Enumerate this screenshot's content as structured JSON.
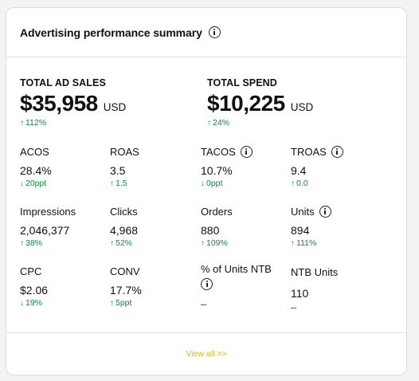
{
  "header": {
    "title": "Advertising performance summary"
  },
  "summary": {
    "sales": {
      "label": "TOTAL AD SALES",
      "value": "$35,958",
      "unit": "USD",
      "delta_arrow": "↑",
      "delta": "112%"
    },
    "spend": {
      "label": "TOTAL SPEND",
      "value": "$10,225",
      "unit": "USD",
      "delta_arrow": "↑",
      "delta": "24%"
    }
  },
  "metrics": {
    "acos": {
      "label": "ACOS",
      "value": "28.4%",
      "delta_arrow": "↓",
      "delta": "20ppt"
    },
    "roas": {
      "label": "ROAS",
      "value": "3.5",
      "delta_arrow": "↑",
      "delta": "1.5"
    },
    "tacos": {
      "label": "TACOS",
      "value": "10.7%",
      "delta_arrow": "↓",
      "delta": "0ppt"
    },
    "troas": {
      "label": "TROAS",
      "value": "9.4",
      "delta_arrow": "↑",
      "delta": "0.0"
    },
    "impressions": {
      "label": "Impressions",
      "value": "2,046,377",
      "delta_arrow": "↑",
      "delta": "38%"
    },
    "clicks": {
      "label": "Clicks",
      "value": "4,968",
      "delta_arrow": "↑",
      "delta": "52%"
    },
    "orders": {
      "label": "Orders",
      "value": "880",
      "delta_arrow": "↑",
      "delta": "109%"
    },
    "units": {
      "label": "Units",
      "value": "894",
      "delta_arrow": "↑",
      "delta": "111%"
    },
    "cpc": {
      "label": "CPC",
      "value": "$2.06",
      "delta_arrow": "↓",
      "delta": "19%"
    },
    "conv": {
      "label": "CONV",
      "value": "17.7%",
      "delta_arrow": "↑",
      "delta": "5ppt"
    },
    "pct_units_ntb": {
      "label": "% of Units NTB",
      "value": "–"
    },
    "ntb_units": {
      "label": "NTB Units",
      "value": "110",
      "dash": "–"
    }
  },
  "footer": {
    "view_all": "View all >>"
  },
  "colors": {
    "positive": "#128a3f",
    "link": "#e6b800"
  }
}
